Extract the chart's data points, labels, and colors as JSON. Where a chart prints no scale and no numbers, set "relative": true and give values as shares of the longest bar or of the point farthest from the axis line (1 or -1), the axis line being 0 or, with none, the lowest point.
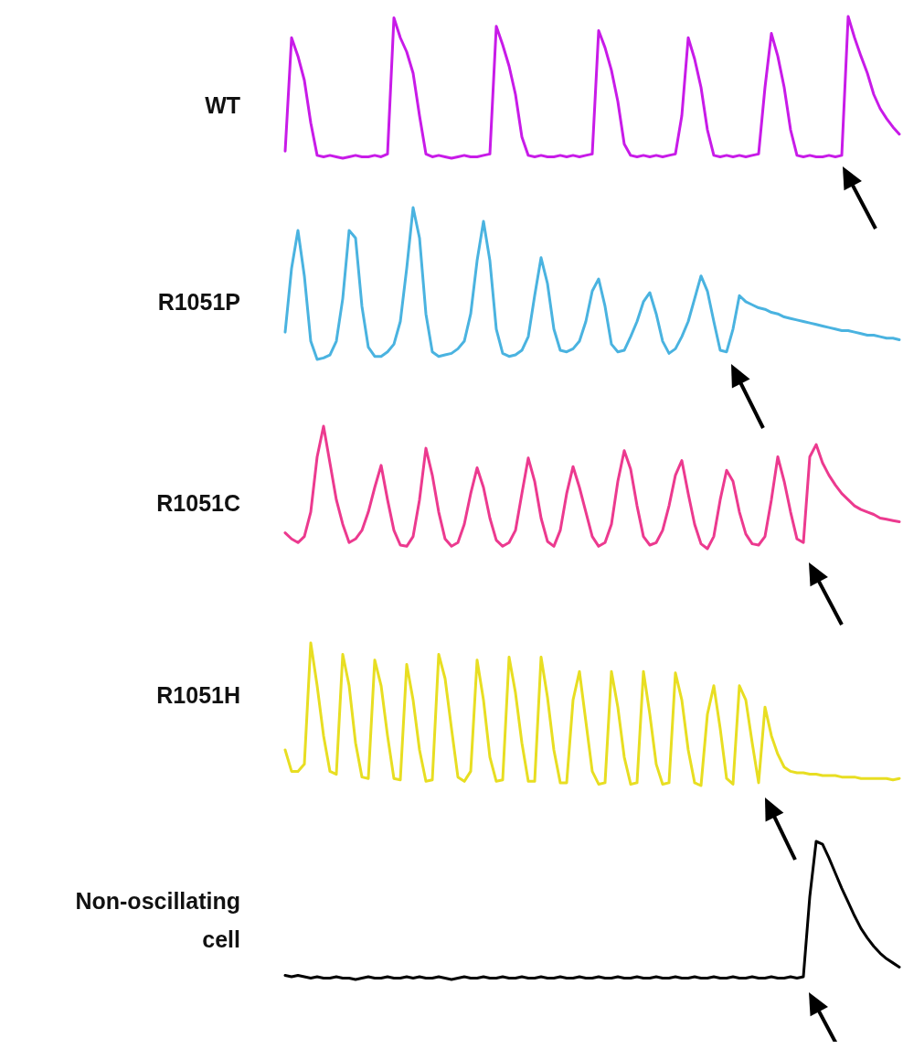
{
  "chart_data": [
    {
      "type": "line",
      "relative": true,
      "marker": "none",
      "categories": [
        null,
        null,
        null,
        null,
        null,
        null,
        null,
        null,
        null,
        null,
        null,
        null,
        null,
        null,
        null,
        null,
        null,
        null,
        null,
        null,
        null,
        null,
        null,
        null,
        null,
        null,
        null,
        null,
        null,
        null,
        null,
        null,
        null,
        null,
        null,
        null,
        null,
        null,
        null,
        null,
        null,
        null,
        null,
        null,
        null,
        null,
        null,
        null,
        null,
        null,
        null,
        null,
        null,
        null,
        null,
        null,
        null,
        null,
        null,
        null,
        null,
        null,
        null,
        null,
        null,
        null,
        null,
        null,
        null,
        null,
        null,
        null,
        null,
        null,
        null,
        null,
        null,
        null,
        null,
        null,
        null,
        null,
        null,
        null,
        null,
        null,
        null,
        null,
        null,
        null,
        null,
        null,
        null,
        null,
        null,
        null,
        null
      ],
      "series": [
        {
          "name": "WT",
          "color": "#c81be8",
          "values": [
            0.05,
            0.85,
            0.72,
            0.55,
            0.25,
            0.02,
            0.01,
            0.02,
            0.01,
            0.0,
            0.01,
            0.02,
            0.01,
            0.01,
            0.02,
            0.01,
            0.03,
            0.99,
            0.85,
            0.75,
            0.6,
            0.3,
            0.03,
            0.01,
            0.02,
            0.01,
            0.0,
            0.01,
            0.02,
            0.01,
            0.01,
            0.02,
            0.03,
            0.93,
            0.8,
            0.65,
            0.45,
            0.15,
            0.02,
            0.01,
            0.02,
            0.01,
            0.01,
            0.02,
            0.01,
            0.02,
            0.01,
            0.02,
            0.03,
            0.9,
            0.78,
            0.62,
            0.4,
            0.1,
            0.02,
            0.01,
            0.02,
            0.01,
            0.02,
            0.01,
            0.02,
            0.03,
            0.3,
            0.85,
            0.7,
            0.5,
            0.2,
            0.02,
            0.01,
            0.02,
            0.01,
            0.02,
            0.01,
            0.02,
            0.03,
            0.5,
            0.88,
            0.72,
            0.5,
            0.2,
            0.02,
            0.01,
            0.02,
            0.01,
            0.01,
            0.02,
            0.01,
            0.02,
            1.0,
            0.85,
            0.72,
            0.6,
            0.45,
            0.35,
            0.28,
            0.22,
            0.17
          ]
        }
      ]
    },
    {
      "type": "line",
      "relative": true,
      "marker": "none",
      "categories": [
        null,
        null,
        null,
        null,
        null,
        null,
        null,
        null,
        null,
        null,
        null,
        null,
        null,
        null,
        null,
        null,
        null,
        null,
        null,
        null,
        null,
        null,
        null,
        null,
        null,
        null,
        null,
        null,
        null,
        null,
        null,
        null,
        null,
        null,
        null,
        null,
        null,
        null,
        null,
        null,
        null,
        null,
        null,
        null,
        null,
        null,
        null,
        null,
        null,
        null,
        null,
        null,
        null,
        null,
        null,
        null,
        null,
        null,
        null,
        null,
        null,
        null,
        null,
        null,
        null,
        null,
        null,
        null,
        null,
        null,
        null,
        null,
        null,
        null,
        null,
        null,
        null,
        null,
        null,
        null,
        null,
        null,
        null,
        null,
        null,
        null,
        null,
        null,
        null,
        null,
        null,
        null,
        null,
        null,
        null,
        null,
        null
      ],
      "series": [
        {
          "name": "R1051P",
          "color": "#4ab3e0",
          "values": [
            0.18,
            0.6,
            0.85,
            0.55,
            0.12,
            0.0,
            0.01,
            0.03,
            0.12,
            0.4,
            0.85,
            0.8,
            0.35,
            0.08,
            0.02,
            0.02,
            0.05,
            0.1,
            0.25,
            0.6,
            1.0,
            0.8,
            0.3,
            0.05,
            0.02,
            0.03,
            0.04,
            0.07,
            0.12,
            0.3,
            0.65,
            0.91,
            0.65,
            0.2,
            0.04,
            0.02,
            0.03,
            0.06,
            0.15,
            0.42,
            0.67,
            0.5,
            0.2,
            0.06,
            0.05,
            0.07,
            0.12,
            0.25,
            0.45,
            0.53,
            0.35,
            0.1,
            0.05,
            0.06,
            0.15,
            0.25,
            0.38,
            0.44,
            0.3,
            0.12,
            0.04,
            0.07,
            0.15,
            0.25,
            0.4,
            0.55,
            0.45,
            0.25,
            0.06,
            0.05,
            0.2,
            0.42,
            0.38,
            0.36,
            0.34,
            0.33,
            0.31,
            0.3,
            0.28,
            0.27,
            0.26,
            0.25,
            0.24,
            0.23,
            0.22,
            0.21,
            0.2,
            0.19,
            0.19,
            0.18,
            0.17,
            0.16,
            0.16,
            0.15,
            0.14,
            0.14,
            0.13
          ]
        }
      ]
    },
    {
      "type": "line",
      "relative": true,
      "marker": "none",
      "categories": [
        null,
        null,
        null,
        null,
        null,
        null,
        null,
        null,
        null,
        null,
        null,
        null,
        null,
        null,
        null,
        null,
        null,
        null,
        null,
        null,
        null,
        null,
        null,
        null,
        null,
        null,
        null,
        null,
        null,
        null,
        null,
        null,
        null,
        null,
        null,
        null,
        null,
        null,
        null,
        null,
        null,
        null,
        null,
        null,
        null,
        null,
        null,
        null,
        null,
        null,
        null,
        null,
        null,
        null,
        null,
        null,
        null,
        null,
        null,
        null,
        null,
        null,
        null,
        null,
        null,
        null,
        null,
        null,
        null,
        null,
        null,
        null,
        null,
        null,
        null,
        null,
        null,
        null,
        null,
        null,
        null,
        null,
        null,
        null,
        null,
        null,
        null,
        null,
        null,
        null,
        null,
        null,
        null,
        null,
        null,
        null,
        null
      ],
      "series": [
        {
          "name": "R1051C",
          "color": "#ec3a8f",
          "values": [
            0.13,
            0.08,
            0.05,
            0.1,
            0.3,
            0.75,
            1.0,
            0.7,
            0.4,
            0.2,
            0.05,
            0.08,
            0.15,
            0.3,
            0.5,
            0.68,
            0.4,
            0.15,
            0.03,
            0.02,
            0.1,
            0.4,
            0.82,
            0.6,
            0.3,
            0.08,
            0.02,
            0.05,
            0.2,
            0.45,
            0.66,
            0.5,
            0.25,
            0.07,
            0.02,
            0.05,
            0.15,
            0.45,
            0.74,
            0.55,
            0.25,
            0.06,
            0.02,
            0.15,
            0.45,
            0.67,
            0.5,
            0.3,
            0.1,
            0.02,
            0.05,
            0.2,
            0.55,
            0.8,
            0.65,
            0.35,
            0.1,
            0.03,
            0.05,
            0.15,
            0.35,
            0.6,
            0.72,
            0.45,
            0.2,
            0.04,
            0.0,
            0.1,
            0.4,
            0.64,
            0.55,
            0.3,
            0.12,
            0.04,
            0.03,
            0.1,
            0.4,
            0.75,
            0.55,
            0.3,
            0.08,
            0.05,
            0.75,
            0.85,
            0.7,
            0.6,
            0.52,
            0.45,
            0.4,
            0.35,
            0.32,
            0.3,
            0.28,
            0.25,
            0.24,
            0.23,
            0.22
          ]
        }
      ]
    },
    {
      "type": "line",
      "relative": true,
      "marker": "none",
      "categories": [
        null,
        null,
        null,
        null,
        null,
        null,
        null,
        null,
        null,
        null,
        null,
        null,
        null,
        null,
        null,
        null,
        null,
        null,
        null,
        null,
        null,
        null,
        null,
        null,
        null,
        null,
        null,
        null,
        null,
        null,
        null,
        null,
        null,
        null,
        null,
        null,
        null,
        null,
        null,
        null,
        null,
        null,
        null,
        null,
        null,
        null,
        null,
        null,
        null,
        null,
        null,
        null,
        null,
        null,
        null,
        null,
        null,
        null,
        null,
        null,
        null,
        null,
        null,
        null,
        null,
        null,
        null,
        null,
        null,
        null,
        null,
        null,
        null,
        null,
        null,
        null,
        null,
        null,
        null,
        null,
        null,
        null,
        null,
        null,
        null,
        null,
        null,
        null,
        null,
        null,
        null,
        null,
        null,
        null,
        null,
        null,
        null
      ],
      "series": [
        {
          "name": "R1051H",
          "color": "#e8de22",
          "values": [
            0.25,
            0.1,
            0.1,
            0.15,
            1.0,
            0.7,
            0.35,
            0.1,
            0.08,
            0.92,
            0.7,
            0.3,
            0.06,
            0.05,
            0.88,
            0.7,
            0.35,
            0.05,
            0.04,
            0.85,
            0.6,
            0.25,
            0.03,
            0.04,
            0.92,
            0.75,
            0.4,
            0.06,
            0.03,
            0.1,
            0.88,
            0.6,
            0.2,
            0.03,
            0.04,
            0.9,
            0.65,
            0.3,
            0.03,
            0.03,
            0.9,
            0.62,
            0.25,
            0.02,
            0.02,
            0.6,
            0.8,
            0.45,
            0.1,
            0.01,
            0.02,
            0.8,
            0.55,
            0.2,
            0.01,
            0.02,
            0.8,
            0.5,
            0.15,
            0.01,
            0.02,
            0.79,
            0.6,
            0.25,
            0.02,
            0.0,
            0.5,
            0.7,
            0.4,
            0.05,
            0.01,
            0.7,
            0.6,
            0.3,
            0.02,
            0.55,
            0.35,
            0.22,
            0.13,
            0.1,
            0.09,
            0.09,
            0.08,
            0.08,
            0.07,
            0.07,
            0.07,
            0.06,
            0.06,
            0.06,
            0.05,
            0.05,
            0.05,
            0.05,
            0.05,
            0.04,
            0.05
          ]
        }
      ]
    },
    {
      "type": "line",
      "relative": true,
      "marker": "none",
      "categories": [
        null,
        null,
        null,
        null,
        null,
        null,
        null,
        null,
        null,
        null,
        null,
        null,
        null,
        null,
        null,
        null,
        null,
        null,
        null,
        null,
        null,
        null,
        null,
        null,
        null,
        null,
        null,
        null,
        null,
        null,
        null,
        null,
        null,
        null,
        null,
        null,
        null,
        null,
        null,
        null,
        null,
        null,
        null,
        null,
        null,
        null,
        null,
        null,
        null,
        null,
        null,
        null,
        null,
        null,
        null,
        null,
        null,
        null,
        null,
        null,
        null,
        null,
        null,
        null,
        null,
        null,
        null,
        null,
        null,
        null,
        null,
        null,
        null,
        null,
        null,
        null,
        null,
        null,
        null,
        null,
        null,
        null,
        null,
        null,
        null,
        null,
        null,
        null,
        null,
        null,
        null,
        null,
        null,
        null,
        null,
        null,
        null
      ],
      "series": [
        {
          "name": "Non-oscillating cell",
          "color": "#000000",
          "values": [
            0.03,
            0.02,
            0.03,
            0.02,
            0.01,
            0.02,
            0.01,
            0.01,
            0.02,
            0.01,
            0.01,
            0.0,
            0.01,
            0.02,
            0.01,
            0.01,
            0.02,
            0.01,
            0.01,
            0.02,
            0.01,
            0.02,
            0.01,
            0.01,
            0.02,
            0.01,
            0.0,
            0.01,
            0.02,
            0.01,
            0.01,
            0.02,
            0.01,
            0.01,
            0.02,
            0.01,
            0.01,
            0.02,
            0.01,
            0.01,
            0.02,
            0.01,
            0.01,
            0.02,
            0.01,
            0.01,
            0.02,
            0.01,
            0.01,
            0.02,
            0.01,
            0.01,
            0.02,
            0.01,
            0.01,
            0.02,
            0.01,
            0.01,
            0.02,
            0.01,
            0.01,
            0.02,
            0.01,
            0.01,
            0.02,
            0.01,
            0.01,
            0.02,
            0.01,
            0.01,
            0.02,
            0.01,
            0.01,
            0.02,
            0.01,
            0.01,
            0.02,
            0.01,
            0.01,
            0.02,
            0.01,
            0.02,
            0.6,
            1.0,
            0.98,
            0.88,
            0.77,
            0.66,
            0.56,
            0.46,
            0.37,
            0.3,
            0.24,
            0.19,
            0.15,
            0.12,
            0.09
          ]
        }
      ]
    }
  ]
}
